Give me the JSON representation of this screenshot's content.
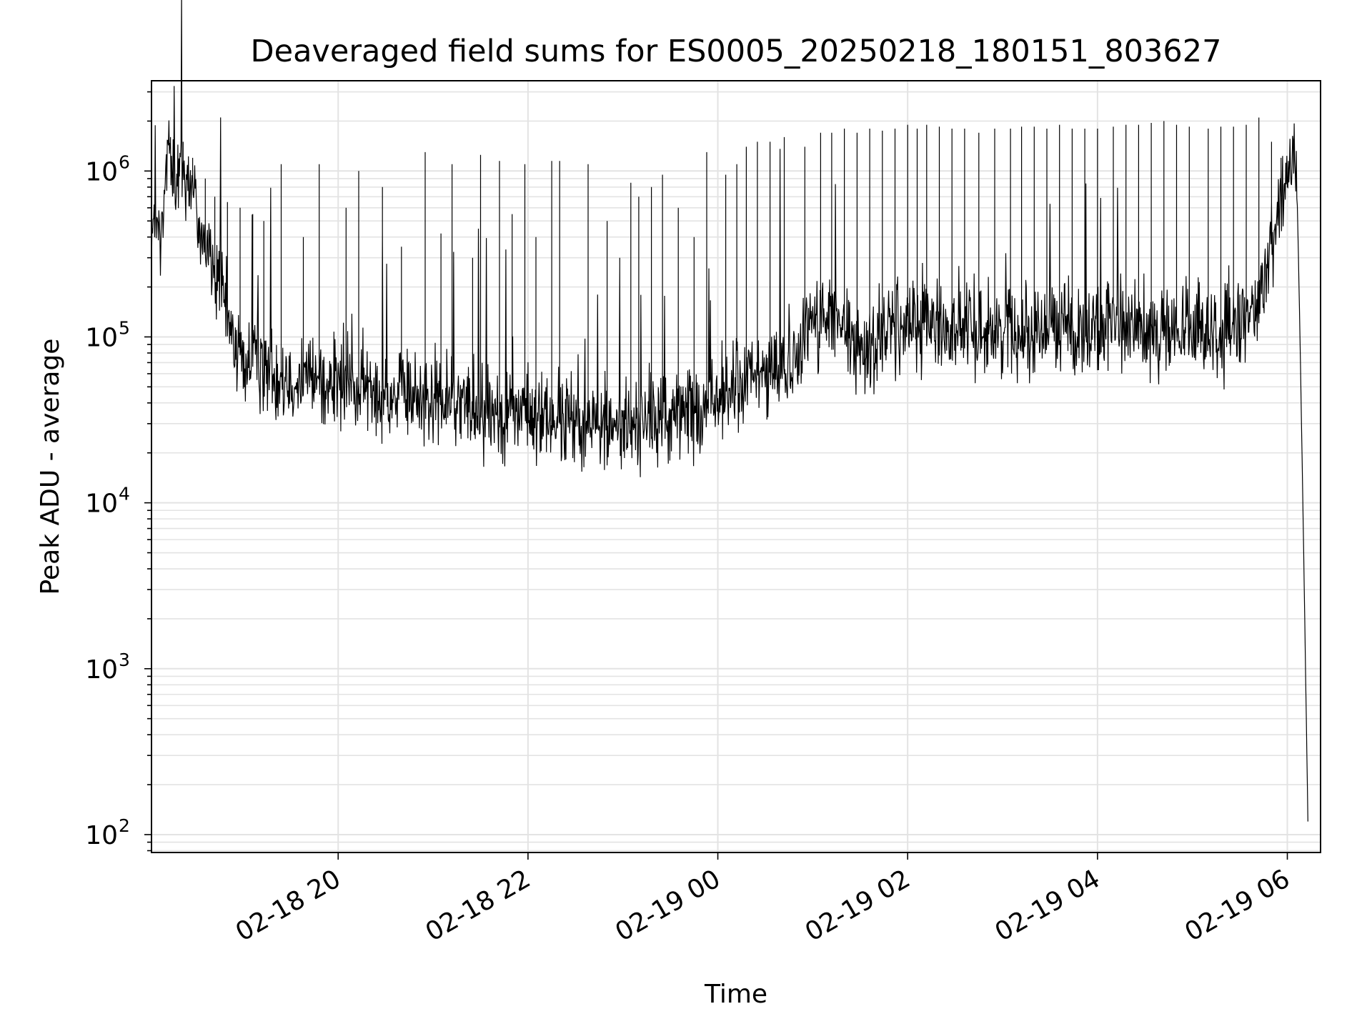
{
  "chart_data": {
    "type": "line",
    "title": "Deaveraged field sums for ES0005_20250218_180151_803627",
    "xlabel": "Time",
    "ylabel": "Peak ADU - average",
    "yscale": "log",
    "ylim": [
      78,
      3500000
    ],
    "xlim": [
      "2025-02-18 18:02",
      "2025-02-19 06:21"
    ],
    "grid": true,
    "line_color": "#000000",
    "x_ticks": [
      {
        "label": "02-18 20",
        "time": "2025-02-18 20:00"
      },
      {
        "label": "02-18 22",
        "time": "2025-02-18 22:00"
      },
      {
        "label": "02-19 00",
        "time": "2025-02-19 00:00"
      },
      {
        "label": "02-19 02",
        "time": "2025-02-19 02:00"
      },
      {
        "label": "02-19 04",
        "time": "2025-02-19 04:00"
      },
      {
        "label": "02-19 06",
        "time": "2025-02-19 06:00"
      }
    ],
    "y_ticks": [
      {
        "base": "10",
        "exp": "2",
        "value": 100
      },
      {
        "base": "10",
        "exp": "3",
        "value": 1000
      },
      {
        "base": "10",
        "exp": "4",
        "value": 10000
      },
      {
        "base": "10",
        "exp": "5",
        "value": 100000
      },
      {
        "base": "10",
        "exp": "6",
        "value": 1000000
      }
    ],
    "series": [
      {
        "baseline": [
          [
            "2025-02-18 18:02",
            450000
          ],
          [
            "2025-02-18 18:09",
            380000
          ],
          [
            "2025-02-18 18:12",
            1500000
          ],
          [
            "2025-02-18 18:18",
            900000
          ],
          [
            "2025-02-18 18:25",
            1000000
          ],
          [
            "2025-02-18 18:32",
            500000
          ],
          [
            "2025-02-18 18:39",
            300000
          ],
          [
            "2025-02-18 18:45",
            200000
          ],
          [
            "2025-02-18 18:52",
            110000
          ],
          [
            "2025-02-18 19:00",
            70000
          ],
          [
            "2025-02-18 19:20",
            62000
          ],
          [
            "2025-02-18 19:50",
            55000
          ],
          [
            "2025-02-18 20:30",
            45000
          ],
          [
            "2025-02-18 21:00",
            42000
          ],
          [
            "2025-02-18 21:30",
            38000
          ],
          [
            "2025-02-18 22:00",
            34000
          ],
          [
            "2025-02-18 22:30",
            30000
          ],
          [
            "2025-02-18 23:00",
            29000
          ],
          [
            "2025-02-18 23:30",
            33000
          ],
          [
            "2025-02-18 23:50",
            37000
          ],
          [
            "2025-02-19 00:10",
            50000
          ],
          [
            "2025-02-19 00:30",
            60000
          ],
          [
            "2025-02-19 00:50",
            75000
          ],
          [
            "2025-02-19 00:55",
            110000
          ],
          [
            "2025-02-19 01:00",
            130000
          ],
          [
            "2025-02-19 01:15",
            120000
          ],
          [
            "2025-02-19 01:25",
            90000
          ],
          [
            "2025-02-19 01:32",
            80000
          ],
          [
            "2025-02-19 01:45",
            110000
          ],
          [
            "2025-02-19 02:00",
            120000
          ],
          [
            "2025-02-19 02:30",
            115000
          ],
          [
            "2025-02-19 03:00",
            110000
          ],
          [
            "2025-02-19 03:30",
            112000
          ],
          [
            "2025-02-19 04:00",
            115000
          ],
          [
            "2025-02-19 04:30",
            110000
          ],
          [
            "2025-02-19 05:00",
            105000
          ],
          [
            "2025-02-19 05:30",
            110000
          ],
          [
            "2025-02-19 05:42",
            150000
          ],
          [
            "2025-02-19 05:50",
            400000
          ],
          [
            "2025-02-19 05:56",
            700000
          ],
          [
            "2025-02-19 06:02",
            1300000
          ],
          [
            "2025-02-19 06:06",
            1000000
          ],
          [
            "2025-02-19 06:08",
            100000
          ],
          [
            "2025-02-19 06:10",
            8000
          ],
          [
            "2025-02-19 06:12",
            500
          ],
          [
            "2025-02-19 06:13",
            120
          ]
        ],
        "spikes": [
          [
            "2025-02-18 18:14",
            1600000
          ],
          [
            "2025-02-18 18:22",
            1500000
          ],
          [
            "2025-02-18 18:28",
            1200000
          ],
          [
            "2025-02-18 18:36",
            900000
          ],
          [
            "2025-02-18 18:42",
            700000
          ],
          [
            "2025-02-18 18:50",
            650000
          ],
          [
            "2025-02-18 18:58",
            600000
          ],
          [
            "2025-02-18 19:06",
            550000
          ],
          [
            "2025-02-18 19:13",
            500000
          ],
          [
            "2025-02-18 19:24",
            1100000
          ],
          [
            "2025-02-18 19:38",
            400000
          ],
          [
            "2025-02-18 19:48",
            1100000
          ],
          [
            "2025-02-18 20:05",
            600000
          ],
          [
            "2025-02-18 20:13",
            1000000
          ],
          [
            "2025-02-18 20:28",
            800000
          ],
          [
            "2025-02-18 20:40",
            350000
          ],
          [
            "2025-02-18 20:55",
            1300000
          ],
          [
            "2025-02-18 21:05",
            420000
          ],
          [
            "2025-02-18 21:12",
            1100000
          ],
          [
            "2025-02-18 21:25",
            300000
          ],
          [
            "2025-02-18 21:30",
            1250000
          ],
          [
            "2025-02-18 21:42",
            1150000
          ],
          [
            "2025-02-18 21:50",
            550000
          ],
          [
            "2025-02-18 21:58",
            1100000
          ],
          [
            "2025-02-18 22:05",
            400000
          ],
          [
            "2025-02-18 22:15",
            1150000
          ],
          [
            "2025-02-18 22:20",
            1150000
          ],
          [
            "2025-02-18 22:38",
            1100000
          ],
          [
            "2025-02-18 22:50",
            500000
          ],
          [
            "2025-02-18 22:58",
            300000
          ],
          [
            "2025-02-18 23:05",
            850000
          ],
          [
            "2025-02-18 23:10",
            700000
          ],
          [
            "2025-02-18 23:18",
            800000
          ],
          [
            "2025-02-18 23:25",
            950000
          ],
          [
            "2025-02-18 23:35",
            600000
          ],
          [
            "2025-02-18 23:45",
            400000
          ],
          [
            "2025-02-18 23:53",
            1300000
          ],
          [
            "2025-02-19 00:05",
            950000
          ],
          [
            "2025-02-19 00:12",
            1100000
          ],
          [
            "2025-02-19 00:18",
            1400000
          ],
          [
            "2025-02-19 00:25",
            1500000
          ],
          [
            "2025-02-19 00:33",
            1500000
          ],
          [
            "2025-02-19 00:42",
            1600000
          ],
          [
            "2025-02-19 00:55",
            1400000
          ],
          [
            "2025-02-19 01:05",
            1700000
          ],
          [
            "2025-02-19 01:12",
            1700000
          ],
          [
            "2025-02-19 01:20",
            1800000
          ],
          [
            "2025-02-19 01:28",
            1700000
          ],
          [
            "2025-02-19 01:36",
            1800000
          ],
          [
            "2025-02-19 01:44",
            1750000
          ],
          [
            "2025-02-19 01:52",
            1800000
          ],
          [
            "2025-02-19 02:00",
            1900000
          ],
          [
            "2025-02-19 02:06",
            1800000
          ],
          [
            "2025-02-19 02:12",
            1900000
          ],
          [
            "2025-02-19 02:20",
            1850000
          ],
          [
            "2025-02-19 02:28",
            1800000
          ],
          [
            "2025-02-19 02:36",
            1800000
          ],
          [
            "2025-02-19 02:45",
            1700000
          ],
          [
            "2025-02-19 02:55",
            1800000
          ],
          [
            "2025-02-19 03:05",
            1800000
          ],
          [
            "2025-02-19 03:12",
            1850000
          ],
          [
            "2025-02-19 03:20",
            1850000
          ],
          [
            "2025-02-19 03:28",
            1800000
          ],
          [
            "2025-02-19 03:36",
            1900000
          ],
          [
            "2025-02-19 03:44",
            1800000
          ],
          [
            "2025-02-19 03:52",
            1800000
          ],
          [
            "2025-02-19 04:00",
            1800000
          ],
          [
            "2025-02-19 04:10",
            1850000
          ],
          [
            "2025-02-19 04:18",
            1900000
          ],
          [
            "2025-02-19 04:26",
            1900000
          ],
          [
            "2025-02-19 04:34",
            1950000
          ],
          [
            "2025-02-19 04:42",
            2000000
          ],
          [
            "2025-02-19 04:50",
            1900000
          ],
          [
            "2025-02-19 04:58",
            1850000
          ],
          [
            "2025-02-19 05:10",
            1800000
          ],
          [
            "2025-02-19 05:18",
            1850000
          ],
          [
            "2025-02-19 05:26",
            1850000
          ],
          [
            "2025-02-19 05:34",
            1900000
          ],
          [
            "2025-02-19 05:42",
            2100000
          ],
          [
            "2025-02-19 05:50",
            1500000
          ],
          [
            "2025-02-19 05:56",
            1200000
          ]
        ]
      }
    ]
  }
}
